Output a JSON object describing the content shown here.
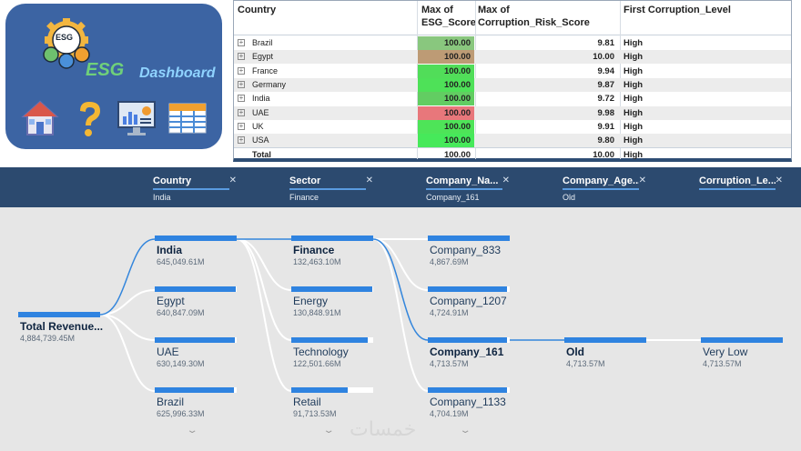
{
  "dashboard": {
    "logo_badge_text": "ESG",
    "logo_title": "ESG",
    "logo_subtitle": "Dashboard",
    "nav_icons": [
      "home-icon",
      "help-question-icon",
      "analytics-monitor-icon",
      "table-grid-icon"
    ],
    "colors": {
      "panel": "#3c64a3",
      "esg_green": "#6fd07a",
      "dashboard_blue": "#8fd3ff"
    }
  },
  "table": {
    "headers": {
      "country": "Country",
      "esg_score_line1": "Max of",
      "esg_score_line2": "ESG_Score",
      "risk_line1": "Max of",
      "risk_line2": "Corruption_Risk_Score",
      "level": "First Corruption_Level"
    },
    "rows": [
      {
        "country": "Brazil",
        "esg": "100.00",
        "risk": "9.81",
        "level": "High",
        "esg_color": "#89c77e"
      },
      {
        "country": "Egypt",
        "esg": "100.00",
        "risk": "10.00",
        "level": "High",
        "esg_color": "#bd9b75"
      },
      {
        "country": "France",
        "esg": "100.00",
        "risk": "9.94",
        "level": "High",
        "esg_color": "#51dd59"
      },
      {
        "country": "Germany",
        "esg": "100.00",
        "risk": "9.87",
        "level": "High",
        "esg_color": "#4ee158"
      },
      {
        "country": "India",
        "esg": "100.00",
        "risk": "9.72",
        "level": "High",
        "esg_color": "#62cd62"
      },
      {
        "country": "UAE",
        "esg": "100.00",
        "risk": "9.98",
        "level": "High",
        "esg_color": "#e8777b"
      },
      {
        "country": "UK",
        "esg": "100.00",
        "risk": "9.91",
        "level": "High",
        "esg_color": "#4ee458"
      },
      {
        "country": "USA",
        "esg": "100.00",
        "risk": "9.80",
        "level": "High",
        "esg_color": "#46e95a"
      }
    ],
    "total": {
      "label": "Total",
      "esg": "100.00",
      "risk": "10.00",
      "level": "High"
    }
  },
  "tree": {
    "levels": [
      {
        "name": "Country",
        "filter": "India"
      },
      {
        "name": "Sector",
        "filter": "Finance"
      },
      {
        "name": "Company_Na...",
        "filter": "Company_161"
      },
      {
        "name": "Company_Age...",
        "filter": "Old"
      },
      {
        "name": "Corruption_Le...",
        "filter": ""
      }
    ],
    "root": {
      "label": "Total Revenue...",
      "value": "4,884,739.45M"
    },
    "country_nodes": [
      {
        "label": "India",
        "value": "645,049.61M",
        "fill": 1.0,
        "selected": true
      },
      {
        "label": "Egypt",
        "value": "640,847.09M",
        "fill": 0.99,
        "selected": false
      },
      {
        "label": "UAE",
        "value": "630,149.30M",
        "fill": 0.98,
        "selected": false
      },
      {
        "label": "Brazil",
        "value": "625,996.33M",
        "fill": 0.97,
        "selected": false
      }
    ],
    "sector_nodes": [
      {
        "label": "Finance",
        "value": "132,463.10M",
        "fill": 1.0,
        "selected": true
      },
      {
        "label": "Energy",
        "value": "130,848.91M",
        "fill": 0.99,
        "selected": false
      },
      {
        "label": "Technology",
        "value": "122,501.66M",
        "fill": 0.93,
        "selected": false
      },
      {
        "label": "Retail",
        "value": "91,713.53M",
        "fill": 0.69,
        "selected": false
      }
    ],
    "company_nodes": [
      {
        "label": "Company_833",
        "value": "4,867.69M",
        "fill": 1.0,
        "selected": false
      },
      {
        "label": "Company_1207",
        "value": "4,724.91M",
        "fill": 0.97,
        "selected": false
      },
      {
        "label": "Company_161",
        "value": "4,713.57M",
        "fill": 0.97,
        "selected": true
      },
      {
        "label": "Company_1133",
        "value": "4,704.19M",
        "fill": 0.97,
        "selected": false
      }
    ],
    "age_node": {
      "label": "Old",
      "value": "4,713.57M"
    },
    "corruption_node": {
      "label": "Very Low",
      "value": "4,713.57M"
    },
    "watermark": "خمسات"
  }
}
